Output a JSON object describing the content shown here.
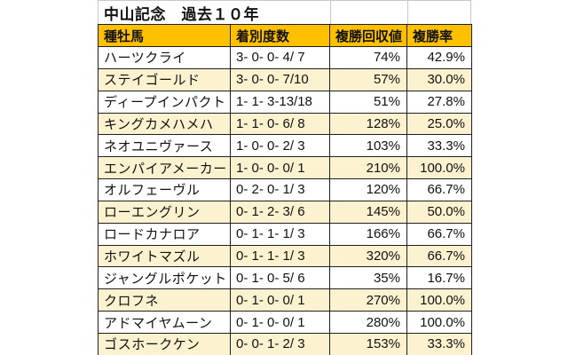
{
  "title": "中山記念　過去１０年",
  "columns": [
    "種牡馬",
    "着別度数",
    "複勝回収値",
    "複勝率"
  ],
  "rows": [
    {
      "sire": "ハーツクライ",
      "record": "3- 0- 0- 4/ 7",
      "place_return": "74%",
      "place_rate": "42.9%"
    },
    {
      "sire": "ステイゴールド",
      "record": "3- 0- 0- 7/10",
      "place_return": "57%",
      "place_rate": "30.0%"
    },
    {
      "sire": "ディープインパクト",
      "record": "1- 1- 3-13/18",
      "place_return": "51%",
      "place_rate": "27.8%"
    },
    {
      "sire": "キングカメハメハ",
      "record": "1- 1- 0- 6/ 8",
      "place_return": "128%",
      "place_rate": "25.0%"
    },
    {
      "sire": "ネオユニヴァース",
      "record": "1- 0- 0- 2/ 3",
      "place_return": "103%",
      "place_rate": "33.3%"
    },
    {
      "sire": "エンパイアメーカー",
      "record": "1- 0- 0- 0/ 1",
      "place_return": "210%",
      "place_rate": "100.0%"
    },
    {
      "sire": "オルフェーヴル",
      "record": "0- 2- 0- 1/ 3",
      "place_return": "120%",
      "place_rate": "66.7%"
    },
    {
      "sire": "ローエングリン",
      "record": "0- 1- 2- 3/ 6",
      "place_return": "145%",
      "place_rate": "50.0%"
    },
    {
      "sire": "ロードカナロア",
      "record": "0- 1- 1- 1/ 3",
      "place_return": "166%",
      "place_rate": "66.7%"
    },
    {
      "sire": "ホワイトマズル",
      "record": "0- 1- 1- 1/ 3",
      "place_return": "320%",
      "place_rate": "66.7%"
    },
    {
      "sire": "ジャングルポケット",
      "record": "0- 1- 0- 5/ 6",
      "place_return": "35%",
      "place_rate": "16.7%"
    },
    {
      "sire": "クロフネ",
      "record": "0- 1- 0- 0/ 1",
      "place_return": "270%",
      "place_rate": "100.0%"
    },
    {
      "sire": "アドマイヤムーン",
      "record": "0- 1- 0- 0/ 1",
      "place_return": "280%",
      "place_rate": "100.0%"
    },
    {
      "sire": "ゴスホークケン",
      "record": "0- 0- 1- 2/ 3",
      "place_return": "153%",
      "place_rate": "33.3%"
    }
  ],
  "colors": {
    "header_bg": "#FFC000",
    "row_bg": "#FFFFFF",
    "row_alt_bg": "#FCF2CF",
    "border": "#1F1F1F",
    "grid_light": "#C8C8C8",
    "text": "#111111"
  },
  "chart_data": {
    "type": "table",
    "title": "中山記念　過去１０年",
    "columns": [
      "種牡馬",
      "着別度数",
      "複勝回収値",
      "複勝率"
    ],
    "rows": [
      [
        "ハーツクライ",
        "3- 0- 0- 4/ 7",
        "74%",
        "42.9%"
      ],
      [
        "ステイゴールド",
        "3- 0- 0- 7/10",
        "57%",
        "30.0%"
      ],
      [
        "ディープインパクト",
        "1- 1- 3-13/18",
        "51%",
        "27.8%"
      ],
      [
        "キングカメハメハ",
        "1- 1- 0- 6/ 8",
        "128%",
        "25.0%"
      ],
      [
        "ネオユニヴァース",
        "1- 0- 0- 2/ 3",
        "103%",
        "33.3%"
      ],
      [
        "エンパイアメーカー",
        "1- 0- 0- 0/ 1",
        "210%",
        "100.0%"
      ],
      [
        "オルフェーヴル",
        "0- 2- 0- 1/ 3",
        "120%",
        "66.7%"
      ],
      [
        "ローエングリン",
        "0- 1- 2- 3/ 6",
        "145%",
        "50.0%"
      ],
      [
        "ロードカナロア",
        "0- 1- 1- 1/ 3",
        "166%",
        "66.7%"
      ],
      [
        "ホワイトマズル",
        "0- 1- 1- 1/ 3",
        "320%",
        "66.7%"
      ],
      [
        "ジャングルポケット",
        "0- 1- 0- 5/ 6",
        "35%",
        "16.7%"
      ],
      [
        "クロフネ",
        "0- 1- 0- 0/ 1",
        "270%",
        "100.0%"
      ],
      [
        "アドマイヤムーン",
        "0- 1- 0- 0/ 1",
        "280%",
        "100.0%"
      ],
      [
        "ゴスホークケン",
        "0- 0- 1- 2/ 3",
        "153%",
        "33.3%"
      ]
    ]
  }
}
